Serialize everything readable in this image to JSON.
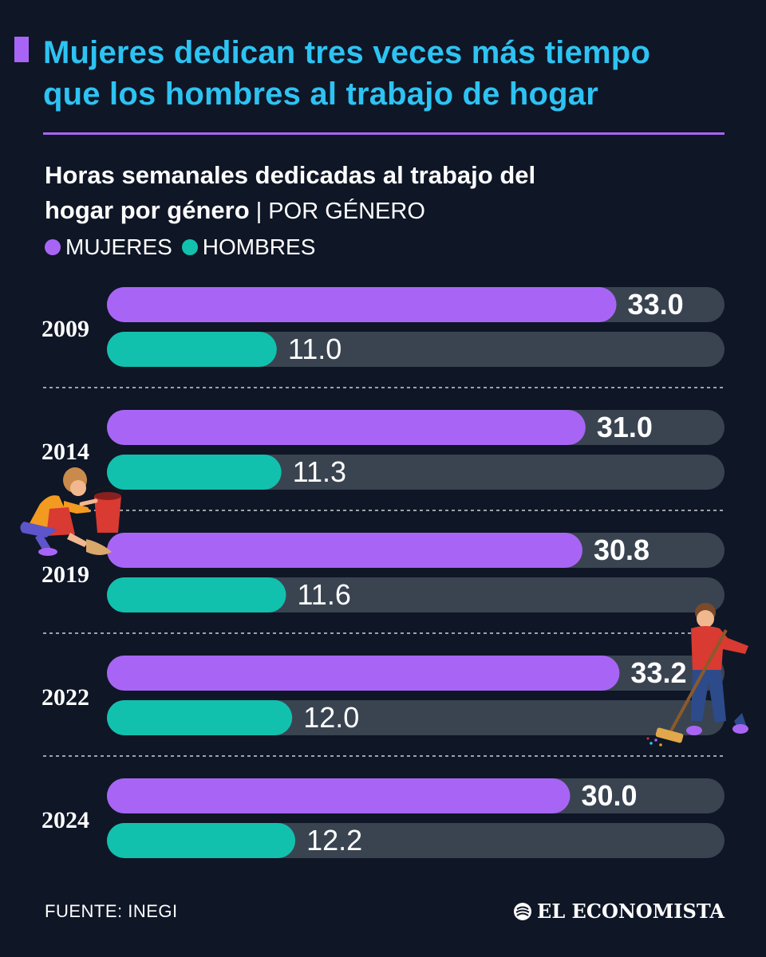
{
  "headline": {
    "line1": "Mujeres dedican tres veces más tiempo",
    "line2": "que los hombres al trabajo de hogar"
  },
  "subtitle": {
    "line1": "Horas semanales dedicadas al trabajo del",
    "line2_bold": "hogar por género",
    "separator": " | ",
    "line2_light": "POR GÉNERO"
  },
  "legend": {
    "women": "MUJERES",
    "men": "HOMBRES"
  },
  "colors": {
    "background": "#0f1626",
    "women": "#a865f5",
    "men": "#12c1ad",
    "track": "#3a4451",
    "headline": "#2dc3f2"
  },
  "chart_data": {
    "type": "bar",
    "orientation": "horizontal",
    "categories": [
      "2009",
      "2014",
      "2019",
      "2022",
      "2024"
    ],
    "series": [
      {
        "name": "MUJERES",
        "values": [
          33.0,
          31.0,
          30.8,
          33.2,
          30.0
        ]
      },
      {
        "name": "HOMBRES",
        "values": [
          11.0,
          11.3,
          11.6,
          12.0,
          12.2
        ]
      }
    ],
    "xlim": [
      0,
      40
    ],
    "value_labels": {
      "MUJERES": [
        "33.0",
        "31.0",
        "30.8",
        "33.2",
        "30.0"
      ],
      "HOMBRES": [
        "11.0",
        "11.3",
        "11.6",
        "12.0",
        "12.2"
      ]
    },
    "legend_position": "top-left",
    "grid": false
  },
  "illustrations": {
    "left": "woman-cleaning-icon",
    "right": "man-sweeping-icon"
  },
  "footer": {
    "source": "FUENTE: INEGI",
    "brand": "EL ECONOMISTA"
  }
}
